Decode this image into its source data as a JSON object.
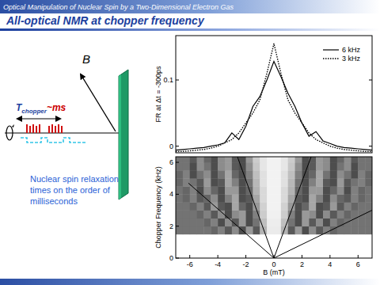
{
  "header": {
    "subtitle": "Optical Manipulation of Nuclear Spin by a Two-Dimensional Electron Gas",
    "title": "All-optical NMR at chopper frequency"
  },
  "diagram": {
    "field_label": "B",
    "period_label": "T",
    "period_subscript": "chopper",
    "period_value": "~ms"
  },
  "note": [
    "Nuclear spin relaxation",
    "times on the order of",
    "milliseconds"
  ],
  "chart_data": [
    {
      "type": "line",
      "y_label": "FR at Δt = -300ps",
      "x": [
        -7,
        -6.5,
        -6,
        -5.5,
        -5,
        -4.5,
        -4,
        -3.5,
        -3,
        -2.5,
        -2,
        -1.5,
        -1,
        -0.5,
        0,
        0.5,
        1,
        1.5,
        2,
        2.5,
        3,
        3.5,
        4,
        4.5,
        5,
        5.5,
        6,
        6.5,
        7
      ],
      "series": [
        {
          "name": "6 kHz",
          "color": "#000000",
          "line_style": "solid",
          "values": [
            -0.006,
            -0.005,
            -0.004,
            -0.003,
            -0.002,
            0.0,
            0.002,
            0.005,
            0.02,
            0.01,
            0.03,
            0.06,
            0.075,
            0.1,
            0.128,
            0.105,
            0.08,
            0.06,
            0.035,
            0.015,
            0.022,
            0.008,
            0.004,
            0.0,
            -0.002,
            -0.003,
            -0.004,
            -0.005,
            -0.006
          ]
        },
        {
          "name": "3 kHz",
          "color": "#000000",
          "line_style": "dotted",
          "values": [
            -0.008,
            -0.008,
            -0.007,
            -0.006,
            -0.005,
            -0.003,
            0.0,
            0.005,
            0.01,
            0.02,
            0.035,
            0.05,
            0.07,
            0.11,
            0.155,
            0.11,
            0.07,
            0.05,
            0.035,
            0.02,
            0.01,
            0.005,
            0.0,
            -0.003,
            -0.005,
            -0.006,
            -0.007,
            -0.008,
            -0.008
          ]
        }
      ],
      "xlim": [
        -7,
        7
      ],
      "ylim": [
        -0.01,
        0.167
      ],
      "yticks": [
        0,
        0.1
      ],
      "tick_labels": "y",
      "legend": "top-right"
    },
    {
      "type": "heatmap",
      "x_label": "B (mT)",
      "y_label": "Chopper Frequency (kHz)",
      "xlim": [
        -7,
        7
      ],
      "ylim": [
        0,
        6.35
      ],
      "xticks": [
        -6,
        -4,
        -2,
        0,
        2,
        4,
        6
      ],
      "yticks": [
        0,
        2,
        4,
        6
      ],
      "x_edges": [
        -7,
        -6.5,
        -6,
        -5.5,
        -5,
        -4.5,
        -4,
        -3.5,
        -3,
        -2.5,
        -2,
        -1.5,
        -1,
        -0.5,
        0,
        0.5,
        1,
        1.5,
        2,
        2.5,
        3,
        3.5,
        4,
        4.5,
        5,
        5.5,
        6,
        6.5,
        7
      ],
      "y_edges": [
        1.5,
        2.0,
        2.5,
        3.0,
        3.5,
        4.0,
        4.5,
        5.0,
        5.5,
        6.0,
        6.35
      ],
      "clim": [
        0,
        1
      ],
      "cells": [
        [
          0.45,
          0.45,
          0.45,
          0.45,
          0.45,
          0.4,
          0.5,
          0.35,
          0.55,
          0.3,
          0.6,
          0.35,
          0.7,
          0.92,
          0.92,
          0.7,
          0.35,
          0.6,
          0.3,
          0.55,
          0.35,
          0.5,
          0.4,
          0.45,
          0.45,
          0.45,
          0.45,
          0.45
        ],
        [
          0.45,
          0.45,
          0.45,
          0.45,
          0.4,
          0.5,
          0.3,
          0.55,
          0.35,
          0.6,
          0.3,
          0.45,
          0.75,
          0.93,
          0.93,
          0.75,
          0.45,
          0.3,
          0.6,
          0.35,
          0.55,
          0.3,
          0.5,
          0.4,
          0.45,
          0.45,
          0.45,
          0.45
        ],
        [
          0.45,
          0.45,
          0.45,
          0.4,
          0.5,
          0.35,
          0.55,
          0.3,
          0.55,
          0.6,
          0.3,
          0.5,
          0.8,
          0.94,
          0.94,
          0.8,
          0.5,
          0.3,
          0.6,
          0.55,
          0.3,
          0.55,
          0.35,
          0.5,
          0.4,
          0.45,
          0.45,
          0.45
        ],
        [
          0.45,
          0.45,
          0.4,
          0.5,
          0.35,
          0.6,
          0.35,
          0.3,
          0.65,
          0.4,
          0.3,
          0.6,
          0.82,
          0.95,
          0.95,
          0.82,
          0.6,
          0.3,
          0.4,
          0.65,
          0.3,
          0.35,
          0.6,
          0.35,
          0.5,
          0.4,
          0.45,
          0.45
        ],
        [
          0.45,
          0.4,
          0.5,
          0.35,
          0.4,
          0.55,
          0.3,
          0.5,
          0.65,
          0.3,
          0.35,
          0.65,
          0.85,
          0.95,
          0.95,
          0.85,
          0.65,
          0.35,
          0.3,
          0.65,
          0.5,
          0.3,
          0.55,
          0.4,
          0.35,
          0.5,
          0.4,
          0.45
        ],
        [
          0.45,
          0.4,
          0.5,
          0.3,
          0.55,
          0.4,
          0.3,
          0.6,
          0.6,
          0.3,
          0.4,
          0.7,
          0.85,
          0.95,
          0.95,
          0.85,
          0.7,
          0.4,
          0.3,
          0.6,
          0.6,
          0.3,
          0.4,
          0.55,
          0.3,
          0.5,
          0.4,
          0.45
        ],
        [
          0.4,
          0.5,
          0.45,
          0.35,
          0.6,
          0.3,
          0.35,
          0.65,
          0.5,
          0.3,
          0.45,
          0.72,
          0.88,
          0.95,
          0.95,
          0.88,
          0.72,
          0.45,
          0.3,
          0.5,
          0.65,
          0.35,
          0.3,
          0.6,
          0.35,
          0.45,
          0.5,
          0.4
        ],
        [
          0.4,
          0.5,
          0.3,
          0.45,
          0.55,
          0.3,
          0.45,
          0.65,
          0.4,
          0.3,
          0.5,
          0.75,
          0.88,
          0.95,
          0.95,
          0.88,
          0.75,
          0.5,
          0.3,
          0.4,
          0.65,
          0.45,
          0.3,
          0.55,
          0.45,
          0.3,
          0.5,
          0.4
        ],
        [
          0.45,
          0.45,
          0.3,
          0.55,
          0.45,
          0.3,
          0.55,
          0.6,
          0.35,
          0.3,
          0.55,
          0.78,
          0.9,
          0.95,
          0.95,
          0.9,
          0.78,
          0.55,
          0.3,
          0.35,
          0.6,
          0.55,
          0.3,
          0.45,
          0.55,
          0.3,
          0.45,
          0.45
        ],
        [
          0.45,
          0.45,
          0.35,
          0.55,
          0.4,
          0.3,
          0.55,
          0.6,
          0.35,
          0.3,
          0.6,
          0.8,
          0.9,
          0.95,
          0.95,
          0.9,
          0.8,
          0.6,
          0.3,
          0.35,
          0.6,
          0.55,
          0.3,
          0.4,
          0.55,
          0.35,
          0.45,
          0.45
        ]
      ],
      "guide_lines": [
        {
          "x": [
            0,
            -6.1
          ],
          "y": [
            0,
            4.7
          ]
        },
        {
          "x": [
            0,
            -2.6
          ],
          "y": [
            0,
            6.35
          ]
        },
        {
          "x": [
            0,
            2.65
          ],
          "y": [
            0,
            6.35
          ]
        },
        {
          "x": [
            0,
            7
          ],
          "y": [
            0,
            3.0
          ]
        }
      ]
    }
  ]
}
